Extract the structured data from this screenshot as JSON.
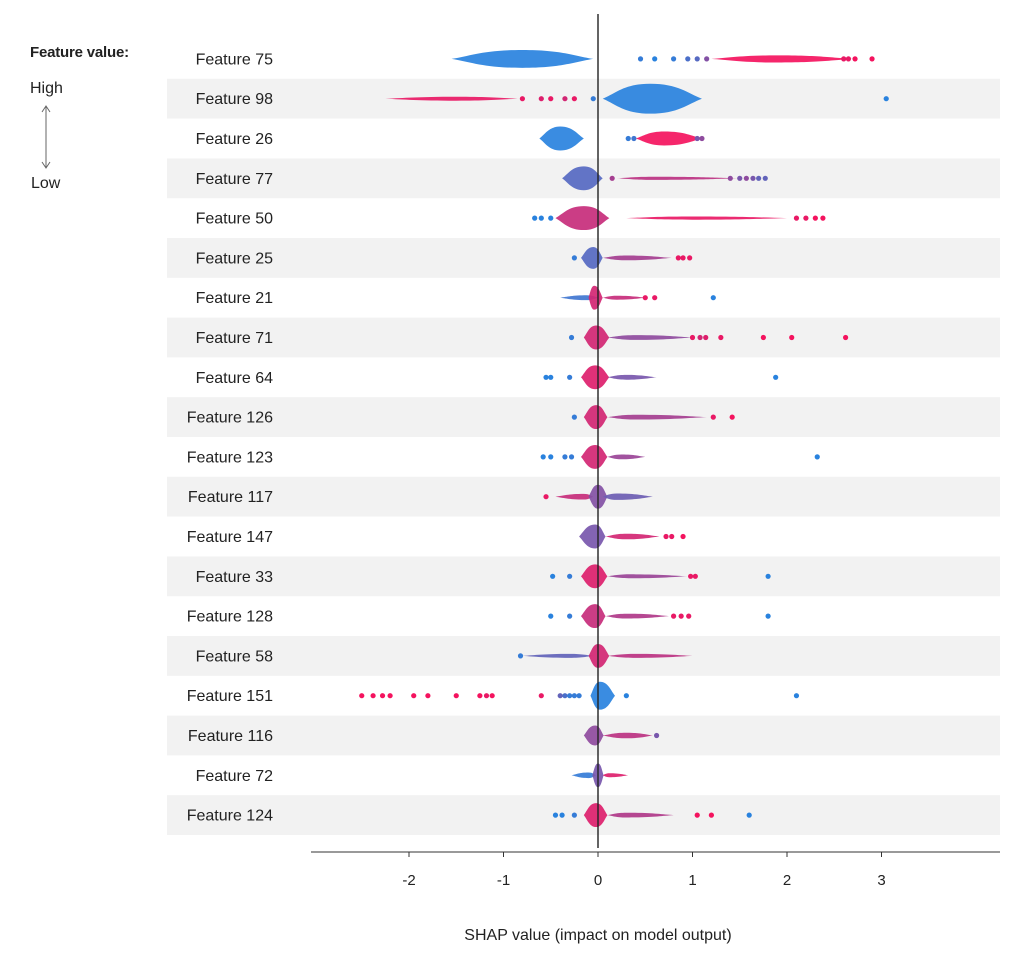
{
  "legend": {
    "title": "Feature value:",
    "high": "High",
    "low": "Low"
  },
  "colors": {
    "high": "#ff0d57",
    "low": "#1e88e5",
    "row_band": "#f2f2f2",
    "zero_line": "#222222"
  },
  "chart_data": {
    "type": "scatter",
    "subtype": "shap_beeswarm_summary",
    "xlabel": "SHAP value (impact on model output)",
    "ylabel": "",
    "xlim": [
      -3,
      4.3
    ],
    "xticks": [
      -2,
      -1,
      0,
      1,
      2,
      3
    ],
    "features": [
      {
        "name": "Feature 75",
        "bodies": [
          {
            "min": -1.55,
            "max": -0.05,
            "peak": -0.8,
            "halfwidth": 0.45,
            "value": 0.05
          },
          {
            "min": 1.2,
            "max": 2.7,
            "peak": 1.9,
            "halfwidth": 0.18,
            "value": 0.95
          }
        ],
        "dots": [
          [
            0.45,
            0.1
          ],
          [
            0.6,
            0.05
          ],
          [
            0.8,
            0.1
          ],
          [
            0.95,
            0.2
          ],
          [
            1.05,
            0.25
          ],
          [
            1.15,
            0.45
          ],
          [
            2.6,
            0.9
          ],
          [
            2.65,
            0.9
          ],
          [
            2.72,
            0.95
          ],
          [
            2.9,
            0.95
          ]
        ]
      },
      {
        "name": "Feature 98",
        "bodies": [
          {
            "min": 0.05,
            "max": 1.1,
            "peak": 0.55,
            "halfwidth": 0.75,
            "value": 0.05
          },
          {
            "min": -2.25,
            "max": -0.85,
            "peak": -1.5,
            "halfwidth": 0.1,
            "value": 0.9
          }
        ],
        "dots": [
          [
            -0.8,
            0.9
          ],
          [
            -0.6,
            0.85
          ],
          [
            -0.5,
            0.9
          ],
          [
            -0.35,
            0.8
          ],
          [
            -0.25,
            0.9
          ],
          [
            -0.05,
            0.1
          ],
          [
            3.05,
            0.05
          ]
        ]
      },
      {
        "name": "Feature 26",
        "bodies": [
          {
            "min": -0.62,
            "max": -0.15,
            "peak": -0.4,
            "halfwidth": 0.6,
            "value": 0.05
          },
          {
            "min": 0.4,
            "max": 1.1,
            "peak": 0.7,
            "halfwidth": 0.35,
            "value": 0.95
          }
        ],
        "dots": [
          [
            0.32,
            0.1
          ],
          [
            0.38,
            0.15
          ],
          [
            1.05,
            0.4
          ],
          [
            1.1,
            0.5
          ]
        ]
      },
      {
        "name": "Feature 77",
        "bodies": [
          {
            "min": -0.38,
            "max": 0.05,
            "peak": -0.15,
            "halfwidth": 0.6,
            "value": 0.25
          },
          {
            "min": 0.2,
            "max": 1.5,
            "peak": 0.6,
            "halfwidth": 0.08,
            "value": 0.7
          }
        ],
        "dots": [
          [
            0.15,
            0.6
          ],
          [
            1.4,
            0.5
          ],
          [
            1.5,
            0.4
          ],
          [
            1.57,
            0.5
          ],
          [
            1.64,
            0.4
          ],
          [
            1.7,
            0.3
          ],
          [
            1.77,
            0.3
          ]
        ]
      },
      {
        "name": "Feature 50",
        "bodies": [
          {
            "min": -0.45,
            "max": 0.12,
            "peak": -0.15,
            "halfwidth": 0.6,
            "value": 0.75
          },
          {
            "min": 0.3,
            "max": 2.0,
            "peak": 1.0,
            "halfwidth": 0.08,
            "value": 0.9
          }
        ],
        "dots": [
          [
            -0.67,
            0.05
          ],
          [
            -0.6,
            0.05
          ],
          [
            -0.5,
            0.05
          ],
          [
            2.1,
            0.9
          ],
          [
            2.2,
            0.9
          ],
          [
            2.3,
            0.95
          ],
          [
            2.38,
            0.95
          ]
        ]
      },
      {
        "name": "Feature 25",
        "bodies": [
          {
            "min": -0.18,
            "max": 0.05,
            "peak": -0.05,
            "halfwidth": 0.55,
            "value": 0.25
          },
          {
            "min": 0.05,
            "max": 0.78,
            "peak": 0.3,
            "halfwidth": 0.12,
            "value": 0.6
          }
        ],
        "dots": [
          [
            -0.25,
            0.1
          ],
          [
            0.85,
            0.9
          ],
          [
            0.9,
            0.9
          ],
          [
            0.97,
            0.9
          ]
        ]
      },
      {
        "name": "Feature 21",
        "bodies": [
          {
            "min": -0.4,
            "max": 0.0,
            "peak": -0.12,
            "halfwidth": 0.12,
            "value": 0.15
          },
          {
            "min": -0.1,
            "max": 0.05,
            "peak": -0.04,
            "halfwidth": 0.6,
            "value": 0.8
          },
          {
            "min": 0.05,
            "max": 0.5,
            "peak": 0.2,
            "halfwidth": 0.1,
            "value": 0.75
          }
        ],
        "dots": [
          [
            0.5,
            0.9
          ],
          [
            0.6,
            0.9
          ],
          [
            1.22,
            0.05
          ]
        ]
      },
      {
        "name": "Feature 71",
        "bodies": [
          {
            "min": -0.15,
            "max": 0.12,
            "peak": -0.02,
            "halfwidth": 0.6,
            "value": 0.8
          },
          {
            "min": 0.1,
            "max": 1.0,
            "peak": 0.4,
            "halfwidth": 0.12,
            "value": 0.5
          }
        ],
        "dots": [
          [
            -0.28,
            0.1
          ],
          [
            1.0,
            0.9
          ],
          [
            1.08,
            0.8
          ],
          [
            1.14,
            0.85
          ],
          [
            1.3,
            0.9
          ],
          [
            1.75,
            0.95
          ],
          [
            2.05,
            0.95
          ],
          [
            2.62,
            0.95
          ]
        ]
      },
      {
        "name": "Feature 64",
        "bodies": [
          {
            "min": -0.18,
            "max": 0.12,
            "peak": -0.03,
            "halfwidth": 0.6,
            "value": 0.85
          },
          {
            "min": 0.1,
            "max": 0.62,
            "peak": 0.3,
            "halfwidth": 0.12,
            "value": 0.4
          }
        ],
        "dots": [
          [
            -0.55,
            0.05
          ],
          [
            -0.5,
            0.05
          ],
          [
            -0.3,
            0.1
          ],
          [
            1.88,
            0.05
          ]
        ]
      },
      {
        "name": "Feature 126",
        "bodies": [
          {
            "min": -0.15,
            "max": 0.1,
            "peak": -0.02,
            "halfwidth": 0.6,
            "value": 0.8
          },
          {
            "min": 0.1,
            "max": 1.15,
            "peak": 0.4,
            "halfwidth": 0.12,
            "value": 0.6
          }
        ],
        "dots": [
          [
            -0.25,
            0.1
          ],
          [
            1.22,
            0.9
          ],
          [
            1.42,
            0.95
          ]
        ]
      },
      {
        "name": "Feature 123",
        "bodies": [
          {
            "min": -0.18,
            "max": 0.1,
            "peak": -0.03,
            "halfwidth": 0.6,
            "value": 0.8
          },
          {
            "min": 0.1,
            "max": 0.5,
            "peak": 0.25,
            "halfwidth": 0.12,
            "value": 0.55
          }
        ],
        "dots": [
          [
            -0.58,
            0.05
          ],
          [
            -0.5,
            0.05
          ],
          [
            -0.35,
            0.1
          ],
          [
            -0.28,
            0.1
          ],
          [
            2.32,
            0.05
          ]
        ]
      },
      {
        "name": "Feature 117",
        "bodies": [
          {
            "min": -0.45,
            "max": -0.05,
            "peak": -0.15,
            "halfwidth": 0.14,
            "value": 0.75
          },
          {
            "min": -0.1,
            "max": 0.1,
            "peak": 0.0,
            "halfwidth": 0.6,
            "value": 0.45
          },
          {
            "min": 0.05,
            "max": 0.58,
            "peak": 0.2,
            "halfwidth": 0.16,
            "value": 0.35
          }
        ],
        "dots": [
          [
            -0.55,
            0.9
          ]
        ]
      },
      {
        "name": "Feature 147",
        "bodies": [
          {
            "min": -0.2,
            "max": 0.08,
            "peak": -0.03,
            "halfwidth": 0.6,
            "value": 0.4
          },
          {
            "min": 0.08,
            "max": 0.65,
            "peak": 0.3,
            "halfwidth": 0.14,
            "value": 0.8
          }
        ],
        "dots": [
          [
            0.72,
            0.9
          ],
          [
            0.78,
            0.9
          ],
          [
            0.9,
            0.95
          ]
        ]
      },
      {
        "name": "Feature 33",
        "bodies": [
          {
            "min": -0.18,
            "max": 0.1,
            "peak": -0.03,
            "halfwidth": 0.6,
            "value": 0.85
          },
          {
            "min": 0.1,
            "max": 0.95,
            "peak": 0.35,
            "halfwidth": 0.1,
            "value": 0.55
          }
        ],
        "dots": [
          [
            -0.48,
            0.05
          ],
          [
            -0.3,
            0.1
          ],
          [
            0.98,
            0.9
          ],
          [
            1.03,
            0.9
          ],
          [
            1.8,
            0.05
          ]
        ]
      },
      {
        "name": "Feature 128",
        "bodies": [
          {
            "min": -0.18,
            "max": 0.08,
            "peak": -0.03,
            "halfwidth": 0.6,
            "value": 0.75
          },
          {
            "min": 0.08,
            "max": 0.75,
            "peak": 0.3,
            "halfwidth": 0.12,
            "value": 0.65
          }
        ],
        "dots": [
          [
            -0.5,
            0.05
          ],
          [
            -0.3,
            0.1
          ],
          [
            0.8,
            0.9
          ],
          [
            0.88,
            0.9
          ],
          [
            0.96,
            0.9
          ],
          [
            1.8,
            0.05
          ]
        ]
      },
      {
        "name": "Feature 58",
        "bodies": [
          {
            "min": -0.8,
            "max": -0.05,
            "peak": -0.3,
            "halfwidth": 0.1,
            "value": 0.3
          },
          {
            "min": -0.1,
            "max": 0.12,
            "peak": 0.0,
            "halfwidth": 0.6,
            "value": 0.8
          },
          {
            "min": 0.1,
            "max": 1.0,
            "peak": 0.4,
            "halfwidth": 0.1,
            "value": 0.7
          }
        ],
        "dots": [
          [
            -0.82,
            0.1
          ]
        ]
      },
      {
        "name": "Feature 151",
        "bodies": [
          {
            "min": -0.08,
            "max": 0.18,
            "peak": 0.02,
            "halfwidth": 0.7,
            "value": 0.05
          }
        ],
        "dots": [
          [
            -2.5,
            0.95
          ],
          [
            -2.38,
            0.95
          ],
          [
            -2.28,
            0.95
          ],
          [
            -2.2,
            0.95
          ],
          [
            -1.95,
            0.95
          ],
          [
            -1.8,
            0.95
          ],
          [
            -1.5,
            0.95
          ],
          [
            -1.25,
            0.95
          ],
          [
            -1.18,
            0.9
          ],
          [
            -1.12,
            0.95
          ],
          [
            -0.6,
            0.9
          ],
          [
            -0.4,
            0.3
          ],
          [
            -0.35,
            0.2
          ],
          [
            -0.3,
            0.1
          ],
          [
            -0.25,
            0.1
          ],
          [
            -0.2,
            0.1
          ],
          [
            0.3,
            0.05
          ],
          [
            2.1,
            0.05
          ]
        ]
      },
      {
        "name": "Feature 116",
        "bodies": [
          {
            "min": -0.15,
            "max": 0.06,
            "peak": -0.03,
            "halfwidth": 0.5,
            "value": 0.5
          },
          {
            "min": 0.05,
            "max": 0.58,
            "peak": 0.3,
            "halfwidth": 0.14,
            "value": 0.7
          }
        ],
        "dots": [
          [
            0.62,
            0.4
          ]
        ]
      },
      {
        "name": "Feature 72",
        "bodies": [
          {
            "min": -0.28,
            "max": -0.02,
            "peak": -0.1,
            "halfwidth": 0.14,
            "value": 0.1
          },
          {
            "min": -0.06,
            "max": 0.06,
            "peak": 0.0,
            "halfwidth": 0.6,
            "value": 0.4
          },
          {
            "min": 0.05,
            "max": 0.32,
            "peak": 0.12,
            "halfwidth": 0.1,
            "value": 0.85
          }
        ],
        "dots": []
      },
      {
        "name": "Feature 124",
        "bodies": [
          {
            "min": -0.15,
            "max": 0.1,
            "peak": -0.02,
            "halfwidth": 0.6,
            "value": 0.85
          },
          {
            "min": 0.1,
            "max": 0.8,
            "peak": 0.3,
            "halfwidth": 0.12,
            "value": 0.65
          }
        ],
        "dots": [
          [
            -0.45,
            0.05
          ],
          [
            -0.38,
            0.05
          ],
          [
            -0.25,
            0.1
          ],
          [
            1.05,
            0.95
          ],
          [
            1.2,
            0.95
          ],
          [
            1.6,
            0.05
          ]
        ]
      }
    ]
  }
}
